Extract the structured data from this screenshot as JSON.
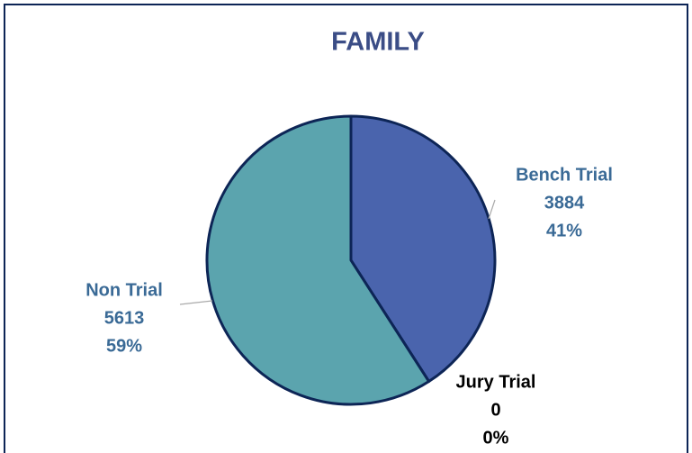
{
  "chart_data": {
    "type": "pie",
    "title": "FAMILY",
    "categories": [
      "Bench Trial",
      "Jury Trial",
      "Non Trial"
    ],
    "values": [
      3884,
      0,
      5613
    ],
    "percent_labels": [
      "41%",
      "0%",
      "59%"
    ],
    "colors": [
      "#4a64ad",
      "#3b5aa0",
      "#5ba4ae"
    ]
  }
}
